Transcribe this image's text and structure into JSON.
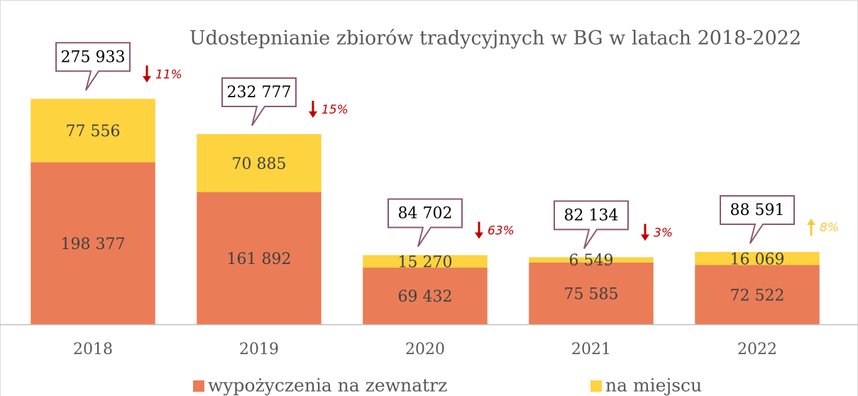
{
  "chart_data": {
    "type": "stacked_bar",
    "title": "Udostepnianie zbiorów tradycyjnych w BG w latach 2018-2022",
    "categories": [
      "2018",
      "2019",
      "2020",
      "2021",
      "2022"
    ],
    "series": [
      {
        "name": "wypożyczenia na zewnatrz",
        "color": "#ea7d57",
        "values": [
          198377,
          161892,
          69432,
          75585,
          72522
        ],
        "value_labels": [
          "198 377",
          "161 892",
          "69 432",
          "75 585",
          "72 522"
        ]
      },
      {
        "name": "na miejscu",
        "color": "#fdd340",
        "values": [
          77556,
          70885,
          15270,
          6549,
          16069
        ],
        "value_labels": [
          "77 556",
          "70 885",
          "15 270",
          "6 549",
          "16 069"
        ]
      }
    ],
    "totals": {
      "values": [
        275933,
        232777,
        84702,
        82134,
        88591
      ],
      "value_labels": [
        "275 933",
        "232 777",
        "84 702",
        "82 134",
        "88 591"
      ]
    },
    "changes": {
      "values": [
        11,
        15,
        63,
        3,
        8
      ],
      "value_labels": [
        "11%",
        "15%",
        "63%",
        "3%",
        "8%"
      ],
      "directions": [
        "down",
        "down",
        "down",
        "down",
        "up"
      ]
    },
    "ylim": [
      0,
      370000
    ],
    "legend": "bottom"
  }
}
